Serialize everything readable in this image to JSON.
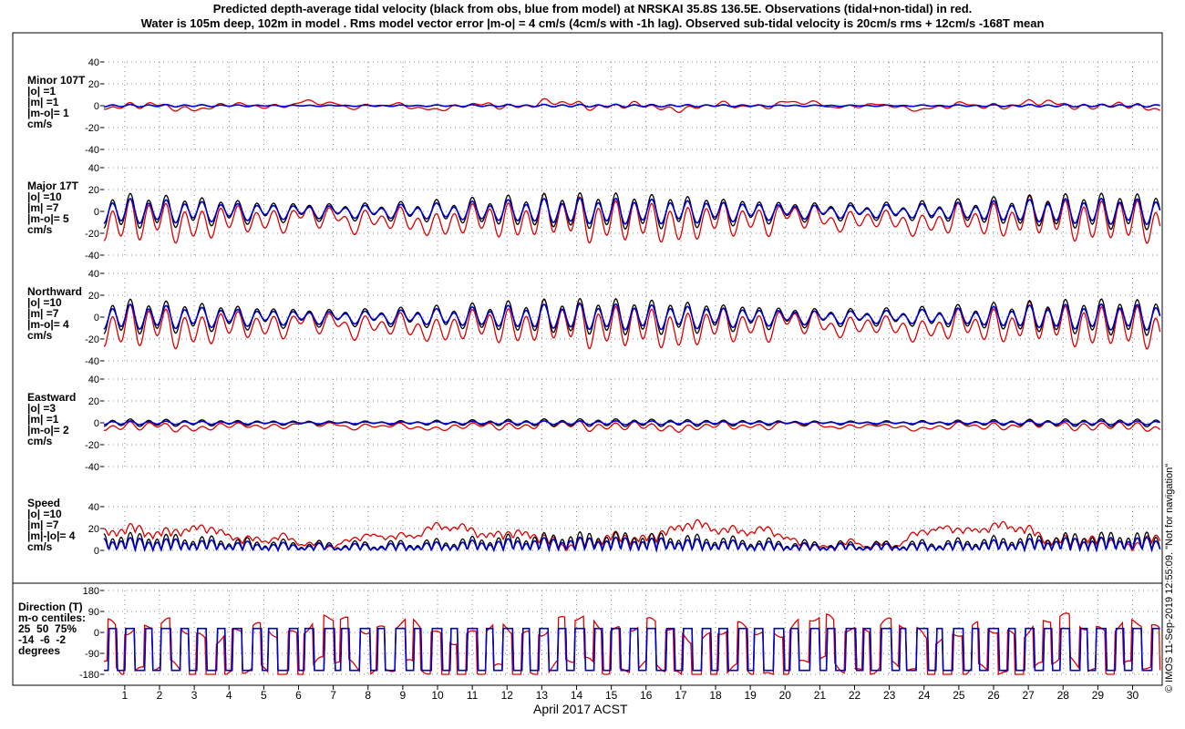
{
  "title": {
    "line1": "Predicted depth-average tidal velocity (black from obs, blue from model) at NRSKAI 35.8S 136.5E. Observations (tidal+non-tidal) in red.",
    "line2": "Water is 105m deep, 102m in model . Rms model vector error |m-o| = 4 cm/s (4cm/s with -1h lag). Observed sub-tidal velocity is 20cm/s rms + 12cm/s -168T mean"
  },
  "credit": "© IMOS 11-Sep-2019 12:55:09.  \"Not for navigation\"",
  "colors": {
    "obs_tidal": "#000000",
    "model": "#0000cc",
    "observed": "#dd0000",
    "grid": "#888888"
  },
  "chart_data": {
    "type": "line",
    "xlabel": "April 2017 ACST",
    "x_ticks": [
      "1",
      "2",
      "3",
      "4",
      "5",
      "6",
      "7",
      "8",
      "9",
      "10",
      "11",
      "12",
      "13",
      "14",
      "15",
      "16",
      "17",
      "18",
      "19",
      "20",
      "21",
      "22",
      "23",
      "24",
      "25",
      "26",
      "27",
      "28",
      "29",
      "30"
    ],
    "xlim_days": [
      0.4,
      30.8
    ],
    "grid": true,
    "panels": [
      {
        "id": "minor",
        "label_lines": [
          "Minor 107T",
          "|o| =1",
          "|m| =1",
          "|m-o|= 1",
          "cm/s"
        ],
        "ylim": [
          -40,
          40
        ],
        "yticks": [
          "40",
          "20",
          "0",
          "-20",
          "-40"
        ],
        "ytick_values": [
          40,
          20,
          0,
          -20,
          -40
        ],
        "series": {
          "obs_tidal": {
            "amp": 1,
            "mean": 0,
            "noise": 0,
            "mode": "sin"
          },
          "model": {
            "amp": 1,
            "mean": 0,
            "noise": 0,
            "mode": "sin"
          },
          "observed": {
            "amp": 2,
            "mean": 0,
            "noise": 4,
            "mode": "sin"
          }
        }
      },
      {
        "id": "major",
        "label_lines": [
          "Major 17T",
          "|o| =10",
          "|m| =7",
          "|m-o|= 5",
          "cm/s"
        ],
        "ylim": [
          -40,
          40
        ],
        "yticks": [
          "40",
          "20",
          "0",
          "-20",
          "-40"
        ],
        "ytick_values": [
          40,
          20,
          0,
          -20,
          -40
        ],
        "series": {
          "obs_tidal": {
            "amp": 14,
            "mean": 0,
            "noise": 0,
            "mode": "sin"
          },
          "model": {
            "amp": 10,
            "mean": 0,
            "noise": 0,
            "mode": "sin"
          },
          "observed": {
            "amp": 16,
            "mean": -8,
            "noise": 6,
            "mode": "sin"
          }
        }
      },
      {
        "id": "northward",
        "label_lines": [
          "Northward",
          "|o| =10",
          "|m| =7",
          "|m-o|= 4",
          "cm/s"
        ],
        "ylim": [
          -40,
          40
        ],
        "yticks": [
          "40",
          "20",
          "0",
          "-20",
          "-40"
        ],
        "ytick_values": [
          40,
          20,
          0,
          -20,
          -40
        ],
        "series": {
          "obs_tidal": {
            "amp": 14,
            "mean": 0,
            "noise": 0,
            "mode": "sin"
          },
          "model": {
            "amp": 10,
            "mean": 0,
            "noise": 0,
            "mode": "sin"
          },
          "observed": {
            "amp": 16,
            "mean": -8,
            "noise": 6,
            "mode": "sin"
          }
        }
      },
      {
        "id": "eastward",
        "label_lines": [
          "Eastward",
          "|o| =3",
          "|m| =1",
          "|m-o|= 2",
          "cm/s"
        ],
        "ylim": [
          -40,
          40
        ],
        "yticks": [
          "40",
          "20",
          "0",
          "-20",
          "-40"
        ],
        "ytick_values": [
          40,
          20,
          0,
          -20,
          -40
        ],
        "series": {
          "obs_tidal": {
            "amp": 3,
            "mean": 0,
            "noise": 0,
            "mode": "sin"
          },
          "model": {
            "amp": 1.5,
            "mean": 0,
            "noise": 0,
            "mode": "sin"
          },
          "observed": {
            "amp": 3,
            "mean": -3,
            "noise": 3,
            "mode": "sin"
          }
        }
      },
      {
        "id": "speed",
        "label_lines": [
          "Speed",
          "|o| =10",
          "|m| =7",
          "|m|-|o|= 4",
          "cm/s"
        ],
        "ylim": [
          0,
          40
        ],
        "yticks": [
          "40",
          "20",
          "0"
        ],
        "ytick_values": [
          40,
          20,
          0
        ],
        "series": {
          "obs_tidal": {
            "amp": 14,
            "mean": 0,
            "noise": 0,
            "mode": "abs"
          },
          "model": {
            "amp": 10,
            "mean": 0,
            "noise": 0,
            "mode": "abs"
          },
          "observed": {
            "amp": 12,
            "mean": 10,
            "noise": 6,
            "mode": "absnoise"
          }
        }
      },
      {
        "id": "direction",
        "label_lines": [
          "Direction (T)",
          "m-o centiles:",
          "25  50  75%",
          "-14  -6  -2",
          "degrees"
        ],
        "ylim": [
          -180,
          180
        ],
        "yticks": [
          "180",
          "90",
          "0",
          "-90",
          "-180"
        ],
        "ytick_values": [
          180,
          90,
          0,
          -90,
          -180
        ],
        "series": {
          "obs_tidal": {
            "mode": "dir"
          },
          "model": {
            "mode": "dir"
          },
          "observed": {
            "mode": "dir"
          }
        }
      }
    ]
  }
}
